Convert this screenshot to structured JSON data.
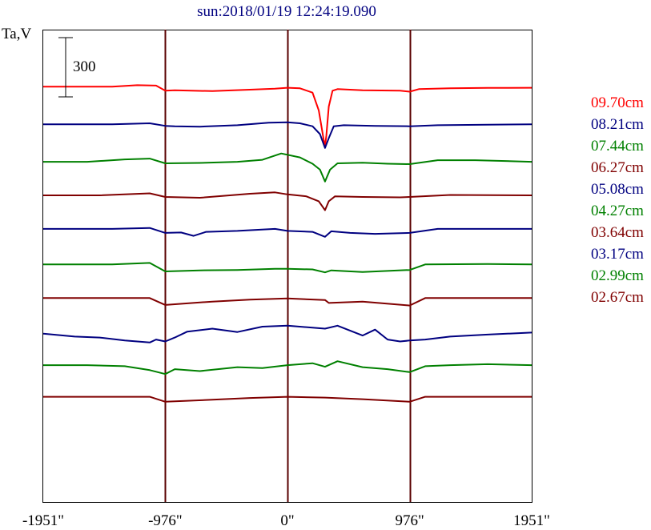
{
  "chart_data": {
    "type": "line",
    "title": "sun:2018/01/19 12:24:19.090",
    "ylabel": "Ta,V",
    "xlabel": "",
    "x_ticks": [
      {
        "value": -1951,
        "label": "-1951\""
      },
      {
        "value": -976,
        "label": "-976\""
      },
      {
        "value": 0,
        "label": "0\""
      },
      {
        "value": 976,
        "label": "976\""
      },
      {
        "value": 1951,
        "label": "1951\""
      }
    ],
    "xlim": [
      -1951,
      1951
    ],
    "scale_bar": {
      "value": 300,
      "label": "300"
    },
    "grid": false,
    "legend_placement": "right",
    "series": [
      {
        "name": "09.70cm",
        "color": "#ff0000",
        "offset": 1000,
        "x": [
          -1951,
          -1400,
          -1200,
          -1050,
          -976,
          -900,
          -600,
          -300,
          -100,
          0,
          100,
          200,
          250,
          290,
          300,
          310,
          330,
          360,
          400,
          600,
          900,
          976,
          1050,
          1300,
          1600,
          1951
        ],
        "y": [
          0,
          0,
          8,
          6,
          -20,
          -18,
          -22,
          -15,
          -10,
          -5,
          -8,
          -30,
          -120,
          -270,
          -300,
          -250,
          -100,
          -20,
          -12,
          -18,
          -20,
          -25,
          -12,
          -8,
          -6,
          -5
        ]
      },
      {
        "name": "08.21cm",
        "color": "#000080",
        "offset": 810,
        "x": [
          -1951,
          -1400,
          -1100,
          -976,
          -900,
          -700,
          -400,
          -150,
          0,
          100,
          200,
          260,
          300,
          330,
          370,
          450,
          700,
          976,
          1200,
          1600,
          1951
        ],
        "y": [
          0,
          0,
          5,
          -8,
          -10,
          -12,
          -5,
          8,
          10,
          5,
          -10,
          -50,
          -120,
          -70,
          -10,
          -5,
          -8,
          -10,
          -5,
          -2,
          0
        ]
      },
      {
        "name": "07.44cm",
        "color": "#008000",
        "offset": 620,
        "x": [
          -1951,
          -1600,
          -1300,
          -1100,
          -976,
          -700,
          -400,
          -200,
          -50,
          100,
          200,
          260,
          300,
          340,
          400,
          600,
          800,
          976,
          1200,
          1500,
          1951
        ],
        "y": [
          0,
          0,
          12,
          16,
          -8,
          -6,
          0,
          10,
          42,
          22,
          -10,
          -40,
          -100,
          -40,
          -8,
          -5,
          -10,
          -12,
          8,
          8,
          0
        ]
      },
      {
        "name": "06.27cm",
        "color": "#800000",
        "offset": 450,
        "x": [
          -1951,
          -1500,
          -1100,
          -976,
          -700,
          -300,
          -100,
          0,
          150,
          250,
          300,
          330,
          380,
          600,
          900,
          976,
          1300,
          1951
        ],
        "y": [
          0,
          0,
          10,
          -8,
          -12,
          8,
          15,
          5,
          -5,
          -30,
          -75,
          -30,
          -5,
          -8,
          -10,
          -8,
          2,
          0
        ]
      },
      {
        "name": "05.08cm",
        "color": "#000080",
        "offset": 280,
        "x": [
          -1951,
          -1400,
          -1100,
          -976,
          -850,
          -750,
          -650,
          -400,
          -100,
          0,
          200,
          300,
          350,
          500,
          700,
          976,
          1200,
          1951
        ],
        "y": [
          0,
          0,
          5,
          -20,
          -18,
          -35,
          -15,
          -10,
          0,
          -10,
          -15,
          -40,
          -12,
          -20,
          -25,
          -20,
          0,
          0
        ]
      },
      {
        "name": "04.27cm",
        "color": "#008000",
        "offset": 100,
        "x": [
          -1951,
          -1400,
          -1100,
          -976,
          -700,
          -400,
          -100,
          0,
          200,
          300,
          350,
          600,
          976,
          1100,
          1600,
          1951
        ],
        "y": [
          0,
          0,
          8,
          -35,
          -30,
          -28,
          -22,
          -22,
          -25,
          -40,
          -30,
          -38,
          -28,
          0,
          2,
          0
        ]
      },
      {
        "name": "03.64cm",
        "color": "#800000",
        "offset": -70,
        "x": [
          -1951,
          -1100,
          -976,
          -600,
          -300,
          0,
          300,
          330,
          600,
          976,
          1100,
          1951
        ],
        "y": [
          0,
          0,
          -35,
          -18,
          -8,
          -2,
          -10,
          -25,
          -18,
          -38,
          0,
          0
        ]
      },
      {
        "name": "03.17cm",
        "color": "#000080",
        "offset": -250,
        "x": [
          -1951,
          -1700,
          -1500,
          -1300,
          -1100,
          -1050,
          -976,
          -900,
          -800,
          -600,
          -400,
          -200,
          0,
          200,
          300,
          400,
          600,
          700,
          800,
          900,
          976,
          1100,
          1300,
          1600,
          1951
        ],
        "y": [
          0,
          -15,
          -20,
          -35,
          -45,
          -30,
          -40,
          -20,
          10,
          25,
          8,
          35,
          40,
          30,
          25,
          40,
          -10,
          20,
          -30,
          -40,
          -35,
          -30,
          -15,
          -5,
          5
        ]
      },
      {
        "name": "02.99cm",
        "color": "#008000",
        "offset": -410,
        "x": [
          -1951,
          -1600,
          -1300,
          -1100,
          -976,
          -900,
          -700,
          -400,
          -200,
          0,
          200,
          300,
          400,
          600,
          800,
          976,
          1100,
          1300,
          1600,
          1951
        ],
        "y": [
          0,
          0,
          -5,
          -25,
          -45,
          -20,
          -30,
          -10,
          -15,
          0,
          10,
          -8,
          20,
          -10,
          -20,
          -35,
          -5,
          0,
          5,
          0
        ]
      },
      {
        "name": "02.67cm",
        "color": "#800000",
        "offset": -570,
        "x": [
          -1951,
          -1100,
          -976,
          -600,
          -300,
          0,
          300,
          600,
          976,
          1100,
          1951
        ],
        "y": [
          0,
          0,
          -25,
          -15,
          -6,
          0,
          -4,
          -12,
          -25,
          0,
          0
        ]
      }
    ]
  }
}
